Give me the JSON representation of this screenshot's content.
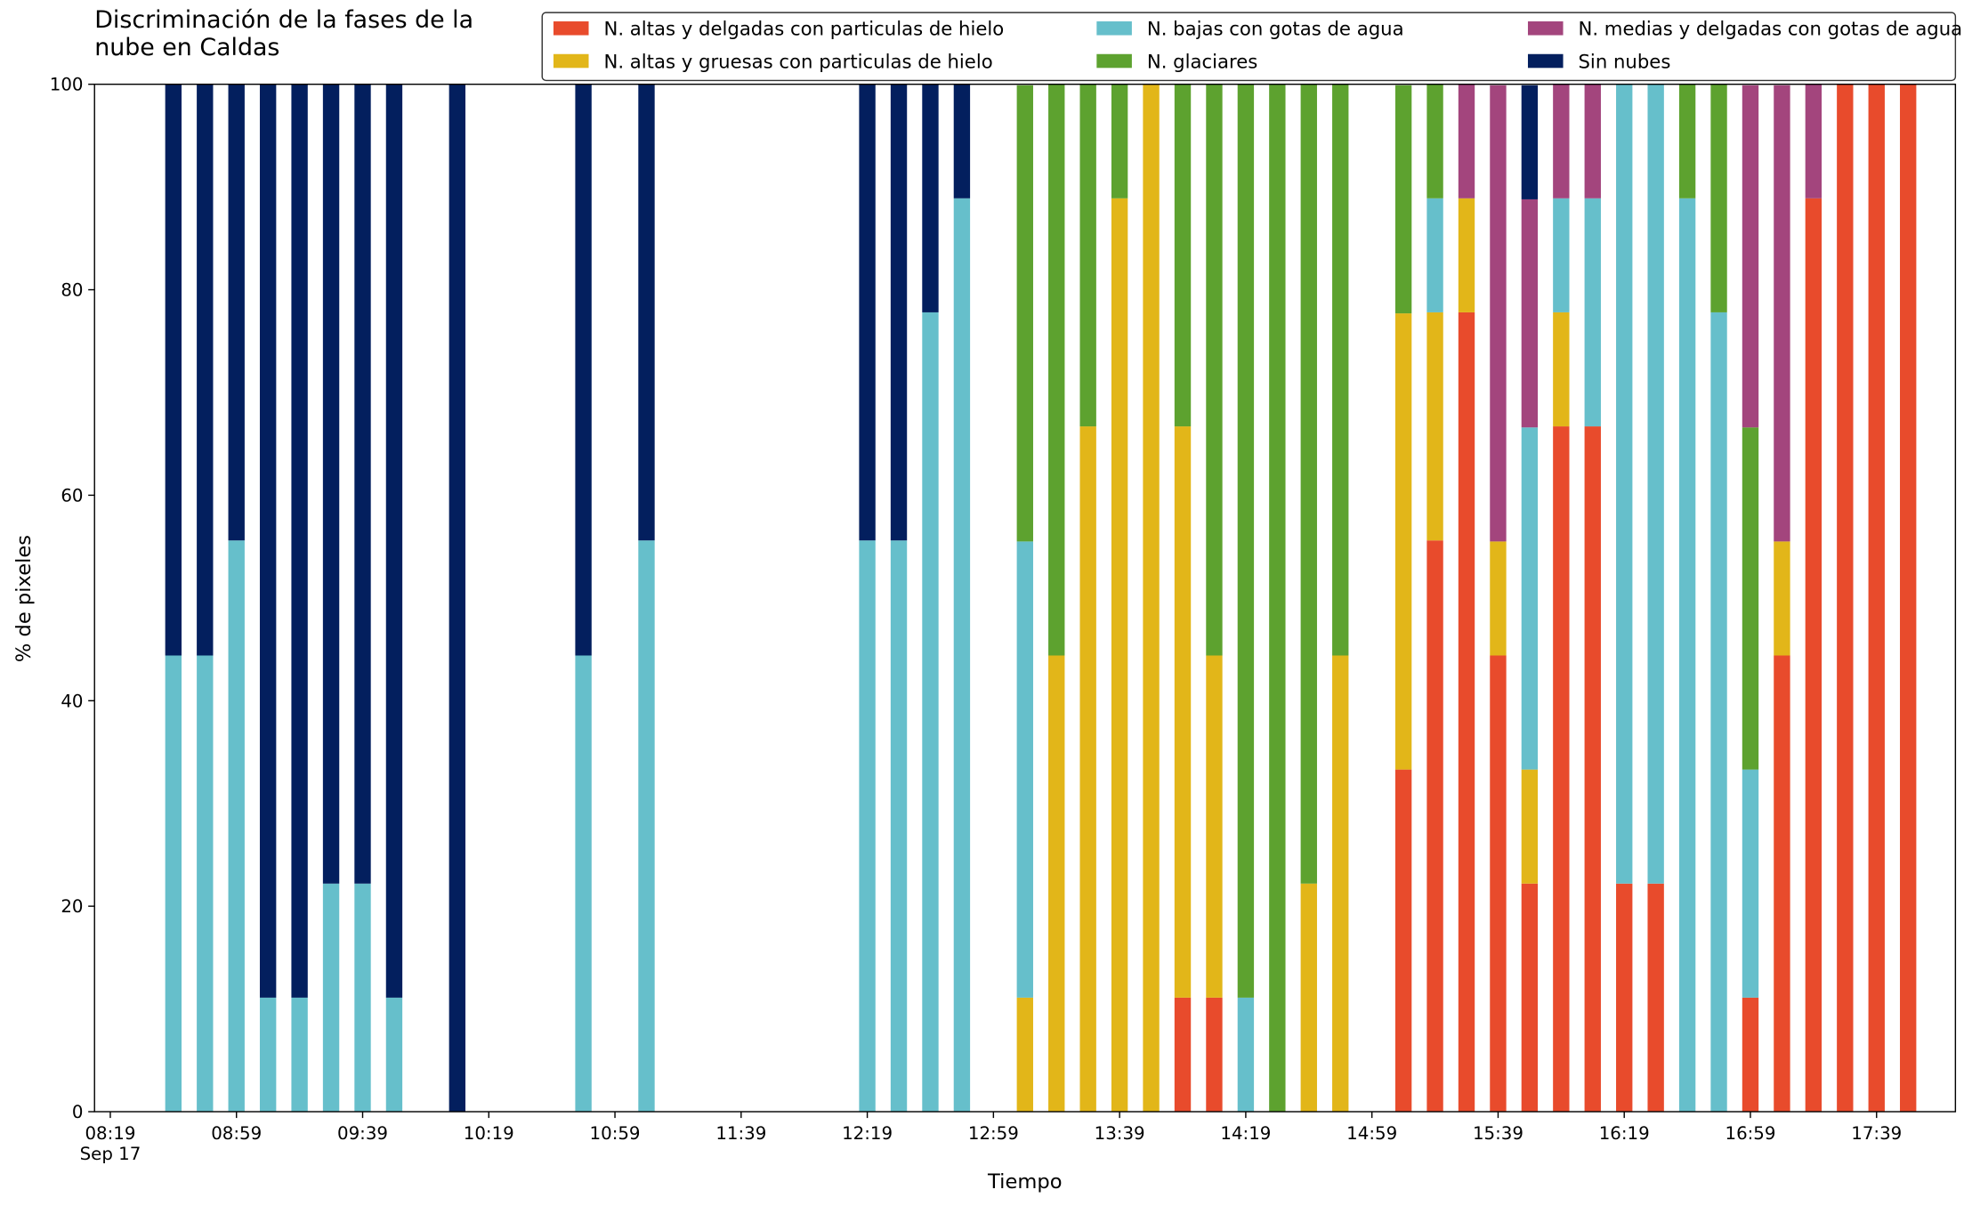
{
  "chart_data": {
    "type": "stacked_bar",
    "title": "Discriminación de la fases de la\nnube en Caldas",
    "x_label": "Tiempo",
    "y_label": "% de pixeles",
    "x": [
      "Sep 17 08:39",
      "Sep 17 08:49",
      "Sep 17 08:59",
      "Sep 17 09:09",
      "Sep 17 09:19",
      "Sep 17 09:29",
      "Sep 17 09:39",
      "Sep 17 09:49",
      "Sep 17 10:09",
      "Sep 17 10:49",
      "Sep 17 11:09",
      "Sep 17 12:19",
      "Sep 17 12:29",
      "Sep 17 12:39",
      "Sep 17 12:49",
      "Sep 17 13:09",
      "Sep 17 13:19",
      "Sep 17 13:29",
      "Sep 17 13:39",
      "Sep 17 13:49",
      "Sep 17 13:59",
      "Sep 17 14:09",
      "Sep 17 14:19",
      "Sep 17 14:29",
      "Sep 17 14:39",
      "Sep 17 14:49",
      "Sep 17 15:09",
      "Sep 17 15:19",
      "Sep 17 15:29",
      "Sep 17 15:39",
      "Sep 17 15:49",
      "Sep 17 15:59",
      "Sep 17 16:09",
      "Sep 17 16:19",
      "Sep 17 16:29",
      "Sep 17 16:39",
      "Sep 17 16:49",
      "Sep 17 16:59",
      "Sep 17 17:09",
      "Sep 17 17:19",
      "Sep 17 17:29",
      "Sep 17 17:39",
      "Sep 17 17:49"
    ],
    "series": [
      {
        "name": "N. altas y delgadas con particulas de hielo",
        "color": "#e84b2c",
        "values": [
          0,
          0,
          0,
          0,
          0,
          0,
          0,
          0,
          0,
          0,
          0,
          0,
          0,
          0,
          0,
          0,
          0,
          0,
          0,
          0,
          11.1,
          11.1,
          0,
          0,
          0,
          0,
          33.3,
          55.6,
          77.8,
          44.4,
          22.2,
          66.7,
          66.7,
          22.2,
          22.2,
          0,
          0,
          11.1,
          44.4,
          88.9,
          100,
          100,
          100
        ]
      },
      {
        "name": "N. altas y gruesas con particulas de hielo",
        "color": "#e2b619",
        "values": [
          0,
          0,
          0,
          0,
          0,
          0,
          0,
          0,
          0,
          0,
          0,
          0,
          0,
          0,
          0,
          11.1,
          44.4,
          66.7,
          88.9,
          100,
          55.6,
          33.3,
          0,
          0,
          22.2,
          44.4,
          44.4,
          22.2,
          11.1,
          11.1,
          11.1,
          11.1,
          0,
          0,
          0,
          0,
          0,
          0,
          11.1,
          0,
          0,
          0,
          0
        ]
      },
      {
        "name": "N. bajas con gotas de agua",
        "color": "#66bfcb",
        "values": [
          44.4,
          44.4,
          55.6,
          11.1,
          11.1,
          22.2,
          22.2,
          11.1,
          0,
          44.4,
          55.6,
          55.6,
          55.6,
          77.8,
          88.9,
          44.4,
          0,
          0,
          0,
          0,
          0,
          0,
          11.1,
          0,
          0,
          0,
          0,
          11.1,
          0,
          0,
          33.3,
          11.1,
          22.2,
          77.8,
          77.8,
          88.9,
          77.8,
          22.2,
          0,
          0,
          0,
          0,
          0
        ]
      },
      {
        "name": "N. glaciares",
        "color": "#5da22f",
        "values": [
          0,
          0,
          0,
          0,
          0,
          0,
          0,
          0,
          0,
          0,
          0,
          0,
          0,
          0,
          0,
          44.4,
          55.6,
          33.3,
          11.1,
          0,
          33.3,
          55.6,
          88.9,
          100,
          77.8,
          55.6,
          22.2,
          11.1,
          0,
          0,
          0,
          0,
          0,
          0,
          0,
          11.1,
          22.2,
          33.3,
          0,
          0,
          0,
          0,
          0
        ]
      },
      {
        "name": "N. medias y delgadas con gotas de agua",
        "color": "#a3457d",
        "values": [
          0,
          0,
          0,
          0,
          0,
          0,
          0,
          0,
          0,
          0,
          0,
          0,
          0,
          0,
          0,
          0,
          0,
          0,
          0,
          0,
          0,
          0,
          0,
          0,
          0,
          0,
          0,
          0,
          11.1,
          44.4,
          22.2,
          11.1,
          11.1,
          0,
          0,
          0,
          0,
          33.3,
          44.4,
          11.1,
          0,
          0,
          0
        ]
      },
      {
        "name": "Sin nubes",
        "color": "#031f5e",
        "values": [
          55.6,
          55.6,
          44.4,
          88.9,
          88.9,
          77.8,
          77.8,
          88.9,
          100,
          55.6,
          44.4,
          44.4,
          44.4,
          22.2,
          11.1,
          0,
          0,
          0,
          0,
          0,
          0,
          0,
          0,
          0,
          0,
          0,
          0,
          0,
          0,
          0,
          11.1,
          0,
          0,
          0,
          0,
          0,
          0,
          0,
          0,
          0,
          0,
          0,
          0
        ]
      }
    ],
    "xlim": [
      "Sep 17 08:14",
      "Sep 17 18:04"
    ],
    "xticks": [
      {
        "value": "Sep 17 08:19",
        "label": "08:19\nSep 17"
      },
      {
        "value": "Sep 17 08:59",
        "label": "08:59"
      },
      {
        "value": "Sep 17 09:39",
        "label": "09:39"
      },
      {
        "value": "Sep 17 10:19",
        "label": "10:19"
      },
      {
        "value": "Sep 17 10:59",
        "label": "10:59"
      },
      {
        "value": "Sep 17 11:39",
        "label": "11:39"
      },
      {
        "value": "Sep 17 12:19",
        "label": "12:19"
      },
      {
        "value": "Sep 17 12:59",
        "label": "12:59"
      },
      {
        "value": "Sep 17 13:39",
        "label": "13:39"
      },
      {
        "value": "Sep 17 14:19",
        "label": "14:19"
      },
      {
        "value": "Sep 17 14:59",
        "label": "14:59"
      },
      {
        "value": "Sep 17 15:39",
        "label": "15:39"
      },
      {
        "value": "Sep 17 16:19",
        "label": "16:19"
      },
      {
        "value": "Sep 17 16:59",
        "label": "16:59"
      },
      {
        "value": "Sep 17 17:39",
        "label": "17:39"
      }
    ],
    "ylim": [
      0,
      100
    ],
    "yticks": [
      0,
      20,
      40,
      60,
      80,
      100
    ],
    "grid": false,
    "legend": "upper right"
  }
}
